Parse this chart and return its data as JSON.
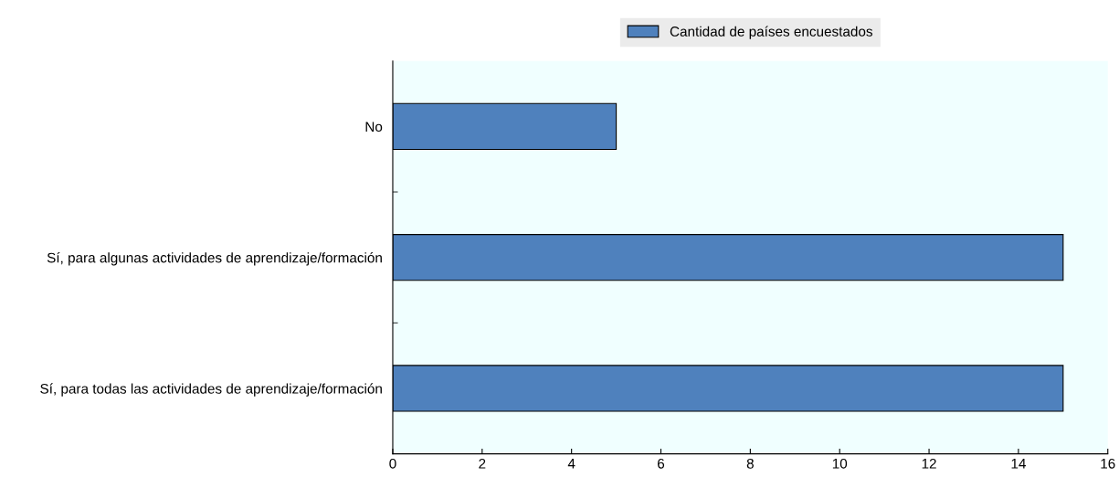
{
  "chart_data": {
    "type": "bar",
    "orientation": "horizontal",
    "categories": [
      "No",
      "Sí, para algunas actividades de aprendizaje/formación",
      "Sí, para todas las actividades de aprendizaje/formación"
    ],
    "series": [
      {
        "name": "Cantidad de países encuestados",
        "color": "#4f81bd",
        "values": [
          5,
          15,
          15
        ]
      }
    ],
    "xlim": [
      0,
      16
    ],
    "xticks": [
      0,
      2,
      4,
      6,
      8,
      10,
      12,
      14,
      16
    ],
    "grid": false,
    "legend": "top"
  }
}
